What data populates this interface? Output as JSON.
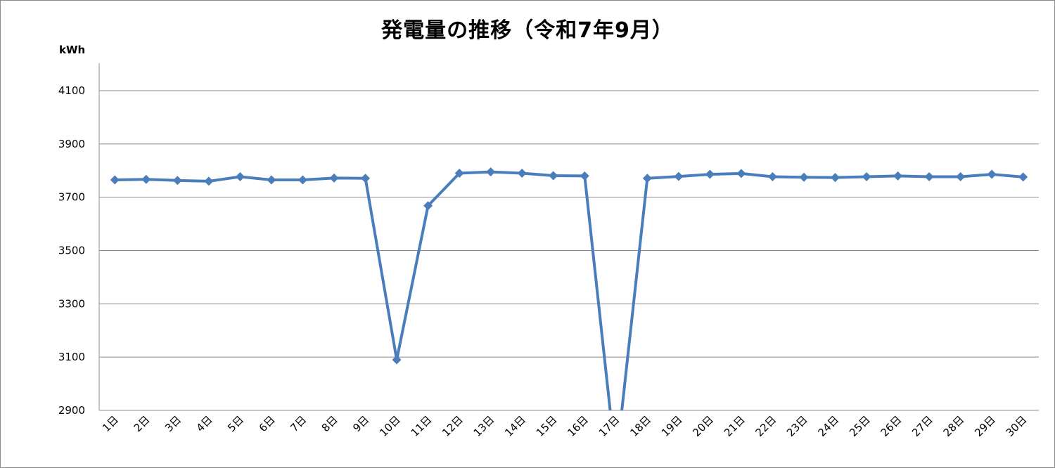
{
  "chart_data": {
    "type": "line",
    "title": "発電量の推移（令和7年9月）",
    "ylabel": "kWh",
    "xlabel": "",
    "ylim": [
      2900,
      4100
    ],
    "yticks": [
      2900,
      3100,
      3300,
      3500,
      3700,
      3900,
      4100
    ],
    "grid": true,
    "categories": [
      "1日",
      "2日",
      "3日",
      "4日",
      "5日",
      "6日",
      "7日",
      "8日",
      "9日",
      "10日",
      "11日",
      "12日",
      "13日",
      "14日",
      "15日",
      "16日",
      "17日",
      "18日",
      "19日",
      "20日",
      "21日",
      "22日",
      "23日",
      "24日",
      "25日",
      "26日",
      "27日",
      "28日",
      "29日",
      "30日"
    ],
    "series": [
      {
        "color": "#4a7ebb",
        "values": [
          3765,
          3767,
          3763,
          3760,
          3777,
          3765,
          3765,
          3772,
          3771,
          3090,
          3668,
          3790,
          3795,
          3790,
          3781,
          3780,
          2700,
          3771,
          3778,
          3786,
          3789,
          3777,
          3775,
          3774,
          3777,
          3780,
          3777,
          3777,
          3786,
          3776
        ]
      }
    ]
  }
}
